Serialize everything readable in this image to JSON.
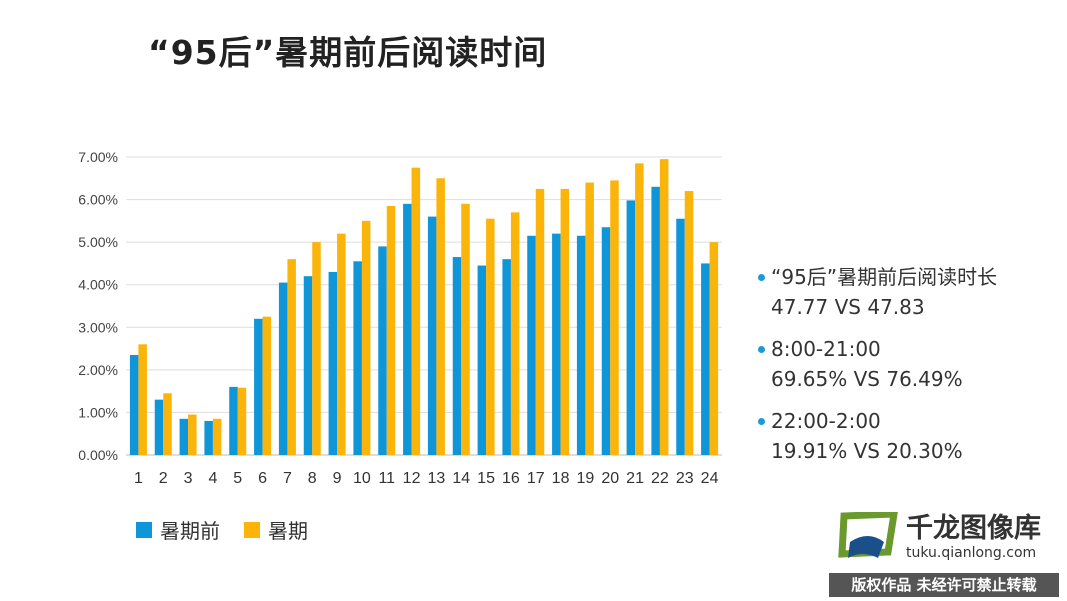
{
  "title": "“95后”暑期前后阅读时间",
  "chart_data": {
    "type": "bar",
    "categories": [
      "1",
      "2",
      "3",
      "4",
      "5",
      "6",
      "7",
      "8",
      "9",
      "10",
      "11",
      "12",
      "13",
      "14",
      "15",
      "16",
      "17",
      "18",
      "19",
      "20",
      "21",
      "22",
      "23",
      "24"
    ],
    "series": [
      {
        "name": "暑期前",
        "color": "#0e96d8",
        "values": [
          2.35,
          1.3,
          0.85,
          0.8,
          1.6,
          3.2,
          4.05,
          4.2,
          4.3,
          4.55,
          4.9,
          5.9,
          5.6,
          4.65,
          4.45,
          4.6,
          5.15,
          5.2,
          5.15,
          5.35,
          5.98,
          6.3,
          5.55,
          4.5
        ]
      },
      {
        "name": "暑期",
        "color": "#fbb40a",
        "values": [
          2.6,
          1.45,
          0.95,
          0.85,
          1.58,
          3.25,
          4.6,
          5.0,
          5.2,
          5.5,
          5.85,
          6.75,
          6.5,
          5.9,
          5.55,
          5.7,
          6.25,
          6.25,
          6.4,
          6.45,
          6.85,
          6.95,
          6.2,
          5.0
        ]
      }
    ],
    "ylim": [
      0,
      7
    ],
    "yticks": [
      "0.00%",
      "1.00%",
      "2.00%",
      "3.00%",
      "4.00%",
      "5.00%",
      "6.00%",
      "7.00%"
    ],
    "grid": true,
    "legend": "bottom-left"
  },
  "notes": [
    {
      "line1": "“95后”暑期前后阅读时长",
      "line2": "47.77 VS 47.83"
    },
    {
      "line1": "8:00-21:00",
      "line2": "69.65% VS 76.49%"
    },
    {
      "line1": "22:00-2:00",
      "line2": "19.91% VS 20.30%"
    }
  ],
  "watermark": {
    "brand": "千龙图像库",
    "url": "tuku.qianlong.com",
    "notice": "版权作品 未经许可禁止转载"
  },
  "colors": {
    "accent_blue": "#0e96d8",
    "accent_orange": "#fbb40a",
    "logo_green": "#6a9a2e",
    "logo_blue": "#1a4f8a"
  }
}
